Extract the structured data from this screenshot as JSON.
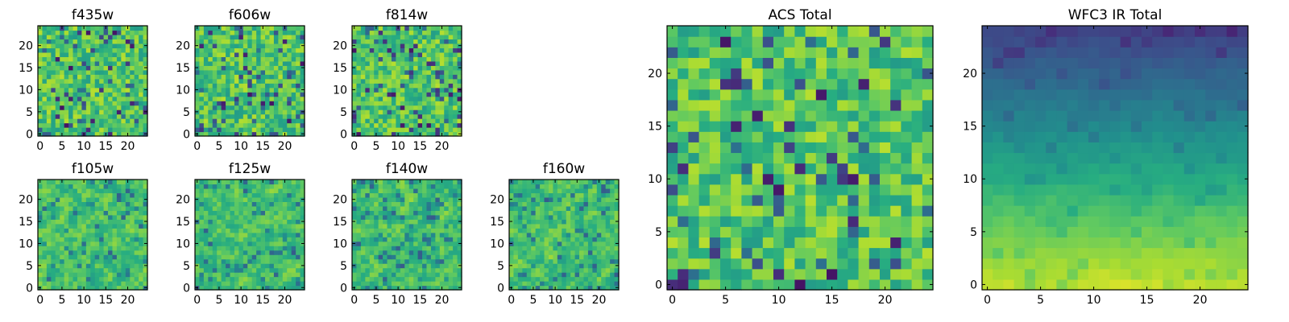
{
  "figure": {
    "description_title": ""
  },
  "chart_data": [
    {
      "type": "heatmap",
      "title": "f435w",
      "colormap": "viridis",
      "seed": 11,
      "smooth": 0,
      "ny": 25,
      "nx": 25,
      "xlim": [
        0,
        24
      ],
      "ylim": [
        0,
        24
      ],
      "xticks": [
        0,
        5,
        10,
        15,
        20
      ],
      "yticks": [
        0,
        5,
        10,
        15,
        20
      ],
      "xtick_labels": [
        "0",
        "5",
        "10",
        "15",
        "20"
      ],
      "ytick_labels": [
        "0",
        "5",
        "10",
        "15",
        "20"
      ]
    },
    {
      "type": "heatmap",
      "title": "f606w",
      "colormap": "viridis",
      "seed": 23,
      "smooth": 0,
      "ny": 25,
      "nx": 25,
      "xlim": [
        0,
        24
      ],
      "ylim": [
        0,
        24
      ],
      "xticks": [
        0,
        5,
        10,
        15,
        20
      ],
      "yticks": [
        0,
        5,
        10,
        15,
        20
      ],
      "xtick_labels": [
        "0",
        "5",
        "10",
        "15",
        "20"
      ],
      "ytick_labels": [
        "0",
        "5",
        "10",
        "15",
        "20"
      ]
    },
    {
      "type": "heatmap",
      "title": "f814w",
      "colormap": "viridis",
      "seed": 37,
      "smooth": 0,
      "ny": 25,
      "nx": 25,
      "xlim": [
        0,
        24
      ],
      "ylim": [
        0,
        24
      ],
      "xticks": [
        0,
        5,
        10,
        15,
        20
      ],
      "yticks": [
        0,
        5,
        10,
        15,
        20
      ],
      "xtick_labels": [
        "0",
        "5",
        "10",
        "15",
        "20"
      ],
      "ytick_labels": [
        "0",
        "5",
        "10",
        "15",
        "20"
      ]
    },
    {
      "type": "heatmap",
      "title": "f105w",
      "colormap": "viridis",
      "seed": 41,
      "smooth": 1,
      "ny": 25,
      "nx": 25,
      "xlim": [
        0,
        24
      ],
      "ylim": [
        0,
        24
      ],
      "xticks": [
        0,
        5,
        10,
        15,
        20
      ],
      "yticks": [
        0,
        5,
        10,
        15,
        20
      ],
      "xtick_labels": [
        "0",
        "5",
        "10",
        "15",
        "20"
      ],
      "ytick_labels": [
        "0",
        "5",
        "10",
        "15",
        "20"
      ]
    },
    {
      "type": "heatmap",
      "title": "f125w",
      "colormap": "viridis",
      "seed": 53,
      "smooth": 1,
      "ny": 25,
      "nx": 25,
      "xlim": [
        0,
        24
      ],
      "ylim": [
        0,
        24
      ],
      "xticks": [
        0,
        5,
        10,
        15,
        20
      ],
      "yticks": [
        0,
        5,
        10,
        15,
        20
      ],
      "xtick_labels": [
        "0",
        "5",
        "10",
        "15",
        "20"
      ],
      "ytick_labels": [
        "0",
        "5",
        "10",
        "15",
        "20"
      ]
    },
    {
      "type": "heatmap",
      "title": "f140w",
      "colormap": "viridis",
      "seed": 67,
      "smooth": 1,
      "ny": 25,
      "nx": 25,
      "xlim": [
        0,
        24
      ],
      "ylim": [
        0,
        24
      ],
      "xticks": [
        0,
        5,
        10,
        15,
        20
      ],
      "yticks": [
        0,
        5,
        10,
        15,
        20
      ],
      "xtick_labels": [
        "0",
        "5",
        "10",
        "15",
        "20"
      ],
      "ytick_labels": [
        "0",
        "5",
        "10",
        "15",
        "20"
      ]
    },
    {
      "type": "heatmap",
      "title": "f160w",
      "colormap": "viridis",
      "seed": 79,
      "smooth": 1,
      "ny": 25,
      "nx": 25,
      "xlim": [
        0,
        24
      ],
      "ylim": [
        0,
        24
      ],
      "xticks": [
        0,
        5,
        10,
        15,
        20
      ],
      "yticks": [
        0,
        5,
        10,
        15,
        20
      ],
      "xtick_labels": [
        "0",
        "5",
        "10",
        "15",
        "20"
      ],
      "ytick_labels": [
        "0",
        "5",
        "10",
        "15",
        "20"
      ]
    },
    {
      "type": "heatmap",
      "title": "ACS Total",
      "colormap": "viridis",
      "seed": 97,
      "smooth": 0,
      "ny": 25,
      "nx": 25,
      "xlim": [
        0,
        24
      ],
      "ylim": [
        0,
        24
      ],
      "xticks": [
        0,
        5,
        10,
        15,
        20
      ],
      "yticks": [
        0,
        5,
        10,
        15,
        20
      ],
      "xtick_labels": [
        "0",
        "5",
        "10",
        "15",
        "20"
      ],
      "ytick_labels": [
        "0",
        "5",
        "10",
        "15",
        "20"
      ]
    },
    {
      "type": "heatmap",
      "title": "WFC3 IR Total",
      "colormap": "viridis",
      "seed": 113,
      "smooth": 1,
      "gradient": "bright-bottom-dark-top",
      "ny": 25,
      "nx": 25,
      "xlim": [
        0,
        24
      ],
      "ylim": [
        0,
        24
      ],
      "xticks": [
        0,
        5,
        10,
        15,
        20
      ],
      "yticks": [
        0,
        5,
        10,
        15,
        20
      ],
      "xtick_labels": [
        "0",
        "5",
        "10",
        "15",
        "20"
      ],
      "ytick_labels": [
        "0",
        "5",
        "10",
        "15",
        "20"
      ]
    }
  ]
}
